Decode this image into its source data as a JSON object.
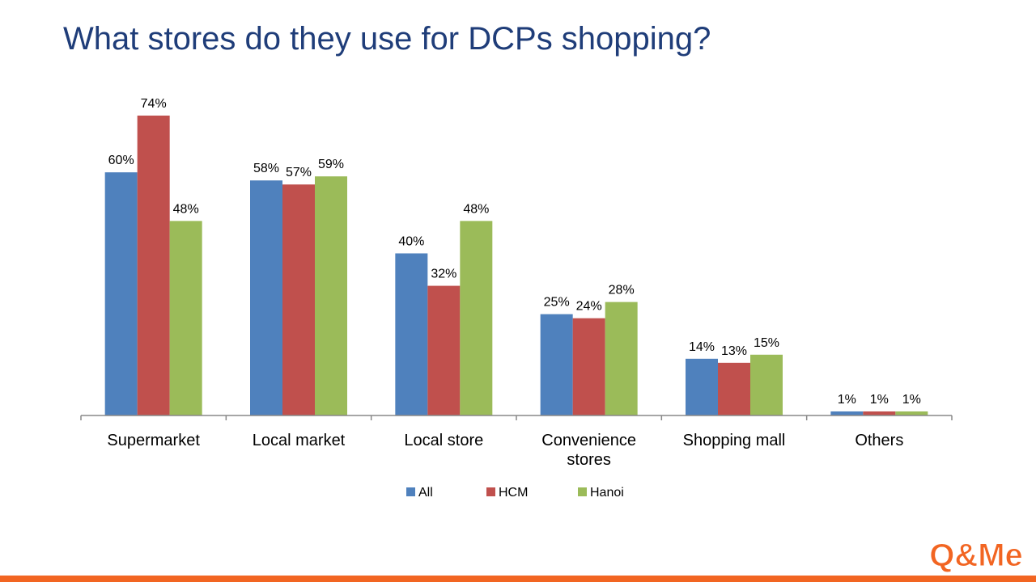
{
  "slide": {
    "title": "What stores do they use for DCPs shopping?",
    "brand_color": "#f26522",
    "title_color": "#1f3d79",
    "logo_text": "Q&Me"
  },
  "chart_data": {
    "type": "bar",
    "title": "What stores do they use for DCPs shopping?",
    "categories": [
      "Supermarket",
      "Local market",
      "Local store",
      "Convenience stores",
      "Shopping mall",
      "Others"
    ],
    "category_lines": [
      [
        "Supermarket"
      ],
      [
        "Local market"
      ],
      [
        "Local store"
      ],
      [
        "Convenience",
        "stores"
      ],
      [
        "Shopping mall"
      ],
      [
        "Others"
      ]
    ],
    "series": [
      {
        "name": "All",
        "color": "#4f81bd",
        "values": [
          60,
          58,
          40,
          25,
          14,
          1
        ]
      },
      {
        "name": "HCM",
        "color": "#c0504d",
        "values": [
          74,
          57,
          32,
          24,
          13,
          1
        ]
      },
      {
        "name": "Hanoi",
        "color": "#9bbb59",
        "values": [
          48,
          59,
          48,
          28,
          15,
          1
        ]
      }
    ],
    "value_suffix": "%",
    "ylim": [
      0,
      74
    ],
    "grid": false,
    "legend": "bottom"
  }
}
